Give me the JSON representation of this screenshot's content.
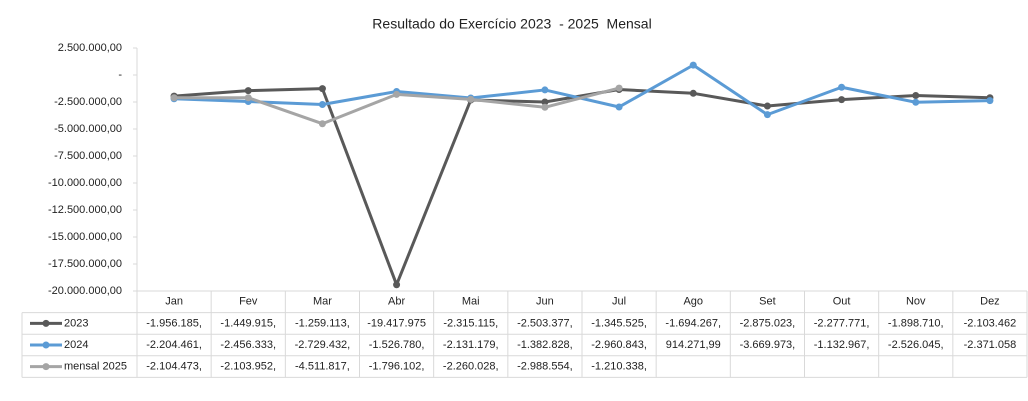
{
  "chart_data": {
    "type": "line",
    "title": "Resultado do Exercício 2023  - 2025  Mensal",
    "categories": [
      "Jan",
      "Fev",
      "Mar",
      "Abr",
      "Mai",
      "Jun",
      "Jul",
      "Ago",
      "Set",
      "Out",
      "Nov",
      "Dez"
    ],
    "series": [
      {
        "name": "2023",
        "color": "#595959",
        "values": [
          -1956185,
          -1449915,
          -1259113,
          -19417975,
          -2315115,
          -2503377,
          -1345525,
          -1694267,
          -2875023,
          -2277771,
          -1898710,
          -2103462
        ],
        "value_labels": [
          "-1.956.185,",
          "-1.449.915,",
          "-1.259.113,",
          "-19.417.975",
          "-2.315.115,",
          "-2.503.377,",
          "-1.345.525,",
          "-1.694.267,",
          "-2.875.023,",
          "-2.277.771,",
          "-1.898.710,",
          "-2.103.462"
        ]
      },
      {
        "name": "2024",
        "color": "#5b9bd5",
        "values": [
          -2204461,
          -2456333,
          -2729432,
          -1526780,
          -2131179,
          -1382828,
          -2960843,
          914271.99,
          -3669973,
          -1132967,
          -2526045,
          -2371058
        ],
        "value_labels": [
          "-2.204.461,",
          "-2.456.333,",
          "-2.729.432,",
          "-1.526.780,",
          "-2.131.179,",
          "-1.382.828,",
          "-2.960.843,",
          "914.271,99",
          "-3.669.973,",
          "-1.132.967,",
          "-2.526.045,",
          "-2.371.058"
        ]
      },
      {
        "name": "mensal 2025",
        "color": "#a5a5a5",
        "values": [
          -2104473,
          -2103952,
          -4511817,
          -1796102,
          -2260028,
          -2988554,
          -1210338,
          null,
          null,
          null,
          null,
          null
        ],
        "value_labels": [
          "-2.104.473,",
          "-2.103.952,",
          "-4.511.817,",
          "-1.796.102,",
          "-2.260.028,",
          "-2.988.554,",
          "-1.210.338,",
          null,
          null,
          null,
          null,
          null
        ]
      }
    ],
    "ylim": [
      -20000000,
      2500000
    ],
    "yticks": [
      {
        "value": 2500000,
        "label": "2.500.000,00"
      },
      {
        "value": 0,
        "label": "-"
      },
      {
        "value": -2500000,
        "label": "-2.500.000,00"
      },
      {
        "value": -5000000,
        "label": "-5.000.000,00"
      },
      {
        "value": -7500000,
        "label": "-7.500.000,00"
      },
      {
        "value": -10000000,
        "label": "-10.000.000,00"
      },
      {
        "value": -12500000,
        "label": "-12.500.000,00"
      },
      {
        "value": -15000000,
        "label": "-15.000.000,00"
      },
      {
        "value": -17500000,
        "label": "-17.500.000,00"
      },
      {
        "value": -20000000,
        "label": "-20.000.000,00"
      }
    ],
    "grid": false
  }
}
